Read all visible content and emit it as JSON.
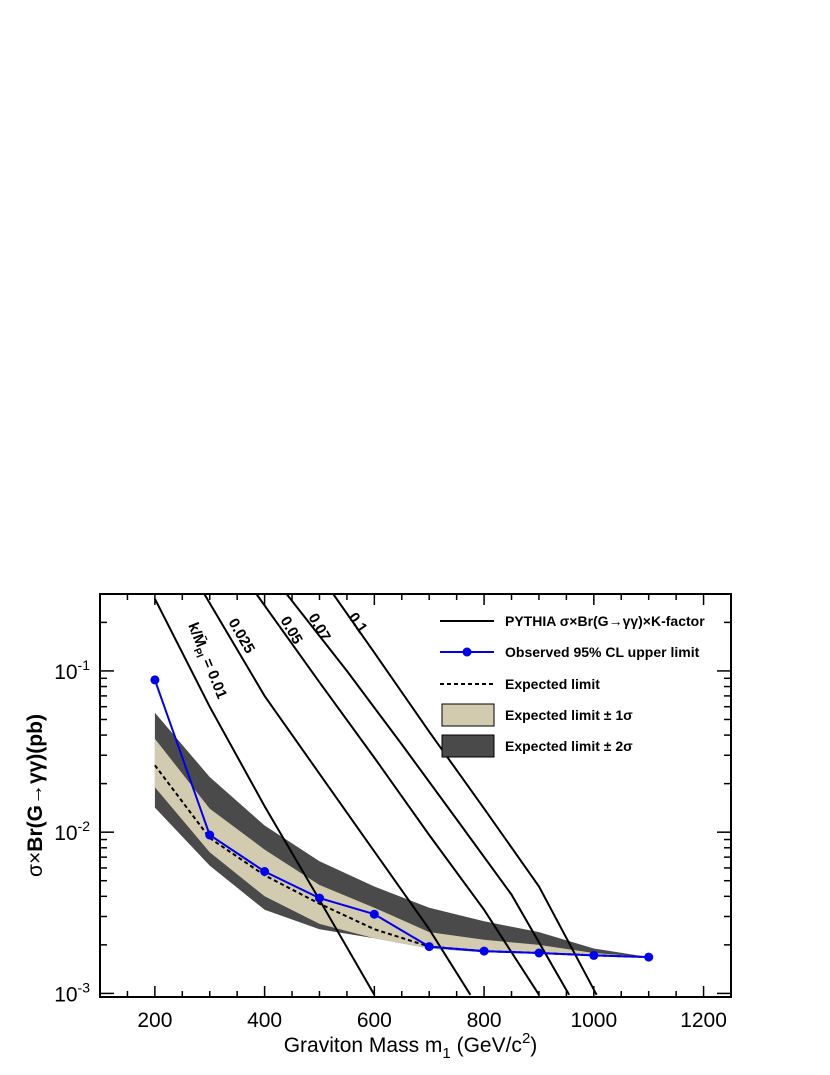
{
  "chart_data": {
    "type": "line",
    "title": "",
    "xlabel_main": "Graviton Mass m",
    "xlabel_sub": "1",
    "xlabel_unit": " (GeV/c",
    "xlabel_sup": "2",
    "xlabel_close": ")",
    "ylabel": "σ×Br(G→γγ)(pb)",
    "xlim": [
      100,
      1250
    ],
    "ylim": [
      0.00095,
      0.3
    ],
    "yscale": "log",
    "grid": false,
    "xticks": [
      200,
      400,
      600,
      800,
      1000,
      1200
    ],
    "xtick_labels": [
      "200",
      "400",
      "600",
      "800",
      "1000",
      "1200"
    ],
    "yticks": [
      0.001,
      0.01,
      0.1
    ],
    "ytick_labels": [
      {
        "base": "10",
        "exp": "-3"
      },
      {
        "base": "10",
        "exp": "-2"
      },
      {
        "base": "10",
        "exp": "-1"
      }
    ],
    "legend_position": "top-right",
    "legend": [
      {
        "label": "PYTHIA σ×Br(G→γγ)×K-factor",
        "style": "line"
      },
      {
        "label": "Observed 95% CL upper limit",
        "style": "marker-line"
      },
      {
        "label": "Expected limit",
        "style": "dashed"
      },
      {
        "label": "Expected limit ± 1σ",
        "style": "box-light"
      },
      {
        "label": "Expected limit ± 2σ",
        "style": "box-dark"
      }
    ],
    "colors": {
      "observed": "#0000ee",
      "band1": "#d2cbb0",
      "band2": "#4a4a4a",
      "theory": "#000000",
      "expected": "#000000"
    },
    "observed": {
      "name": "Observed 95% CL upper limit",
      "x": [
        200,
        300,
        400,
        500,
        600,
        700,
        800,
        900,
        1000,
        1100
      ],
      "y": [
        0.088,
        0.0096,
        0.0057,
        0.0039,
        0.0031,
        0.00195,
        0.00183,
        0.00178,
        0.00172,
        0.00168
      ]
    },
    "expected": {
      "name": "Expected limit",
      "x": [
        200,
        300,
        400,
        500,
        600,
        700,
        800,
        900,
        1000,
        1100
      ],
      "y": [
        0.026,
        0.0092,
        0.0054,
        0.0036,
        0.0025,
        0.00195,
        0.00183,
        0.00178,
        0.00172,
        0.00168
      ]
    },
    "band_1sigma": {
      "x": [
        200,
        300,
        400,
        500,
        600,
        700,
        800,
        900,
        1000,
        1100
      ],
      "low": [
        0.019,
        0.0075,
        0.004,
        0.0027,
        0.0022,
        0.0019,
        0.00182,
        0.00177,
        0.00171,
        0.00168
      ],
      "high": [
        0.038,
        0.014,
        0.0078,
        0.0047,
        0.0034,
        0.0024,
        0.00215,
        0.002,
        0.00178,
        0.00168
      ]
    },
    "band_2sigma": {
      "x": [
        200,
        300,
        400,
        500,
        600,
        700,
        800,
        900,
        1000,
        1100
      ],
      "low": [
        0.0142,
        0.0062,
        0.0033,
        0.0025,
        0.0022,
        0.0019,
        0.0018,
        0.00176,
        0.0017,
        0.00167
      ],
      "high": [
        0.055,
        0.022,
        0.011,
        0.0066,
        0.0046,
        0.0034,
        0.0028,
        0.0024,
        0.0019,
        0.00168
      ]
    },
    "theory_curves": [
      {
        "label": "k/M̄",
        "label_sub": "Pl",
        "label_rest": " = 0.01",
        "x": [
          200,
          300,
          400,
          500,
          600
        ],
        "y": [
          0.28,
          0.06,
          0.0145,
          0.0038,
          0.00098
        ]
      },
      {
        "label": "0.025",
        "x": [
          290,
          400,
          500,
          600,
          700,
          775
        ],
        "y": [
          0.3,
          0.07,
          0.023,
          0.0076,
          0.0025,
          0.00098
        ]
      },
      {
        "label": "0.05",
        "x": [
          385,
          500,
          600,
          700,
          800,
          900
        ],
        "y": [
          0.3,
          0.085,
          0.029,
          0.0096,
          0.0033,
          0.00098
        ]
      },
      {
        "label": "0.07",
        "x": [
          440,
          550,
          650,
          750,
          850,
          955
        ],
        "y": [
          0.3,
          0.1,
          0.035,
          0.012,
          0.0041,
          0.00098
        ]
      },
      {
        "label": "0.1",
        "x": [
          525,
          600,
          700,
          800,
          900,
          1005
        ],
        "y": [
          0.3,
          0.13,
          0.042,
          0.014,
          0.0046,
          0.00098
        ]
      }
    ]
  }
}
